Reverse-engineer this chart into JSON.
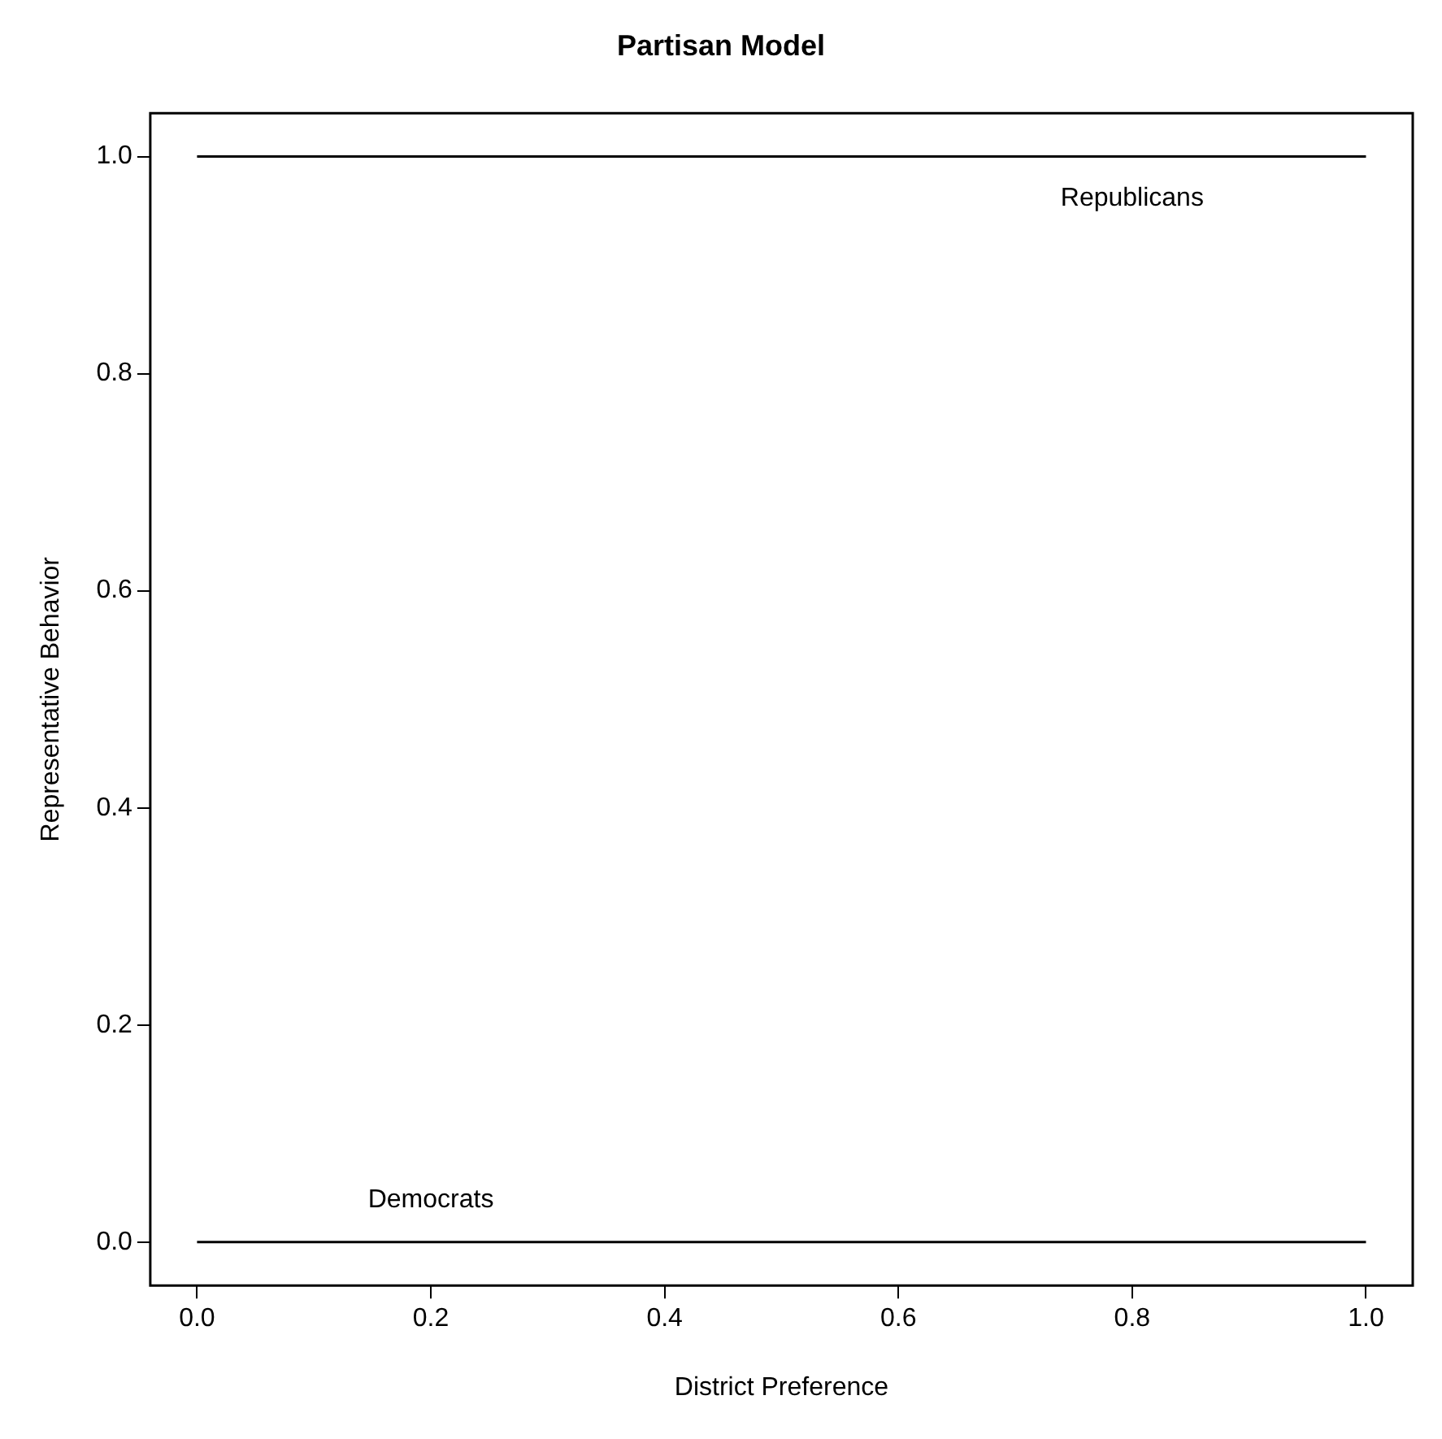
{
  "chart_data": {
    "type": "line",
    "title": "Partisan Model",
    "xlabel": "District Preference",
    "ylabel": "Representative Behavior",
    "x": [
      0,
      1
    ],
    "series": [
      {
        "name": "Republicans",
        "color": "#000000",
        "values": [
          1,
          1
        ]
      },
      {
        "name": "Democrats",
        "color": "#000000",
        "values": [
          0,
          0
        ]
      }
    ],
    "xlim": [
      -0.04,
      1.04
    ],
    "ylim": [
      -0.04,
      1.04
    ],
    "xticks": [
      {
        "value": 0,
        "label": "0.0"
      },
      {
        "value": 0.2,
        "label": "0.2"
      },
      {
        "value": 0.4,
        "label": "0.4"
      },
      {
        "value": 0.6,
        "label": "0.6"
      },
      {
        "value": 0.8,
        "label": "0.8"
      },
      {
        "value": 1,
        "label": "1.0"
      }
    ],
    "yticks": [
      {
        "value": 0,
        "label": "0.0"
      },
      {
        "value": 0.2,
        "label": "0.2"
      },
      {
        "value": 0.4,
        "label": "0.4"
      },
      {
        "value": 0.6,
        "label": "0.6"
      },
      {
        "value": 0.8,
        "label": "0.8"
      },
      {
        "value": 1,
        "label": "1.0"
      }
    ],
    "grid": false,
    "legend": false,
    "marker": "none",
    "line_style": "solid"
  }
}
